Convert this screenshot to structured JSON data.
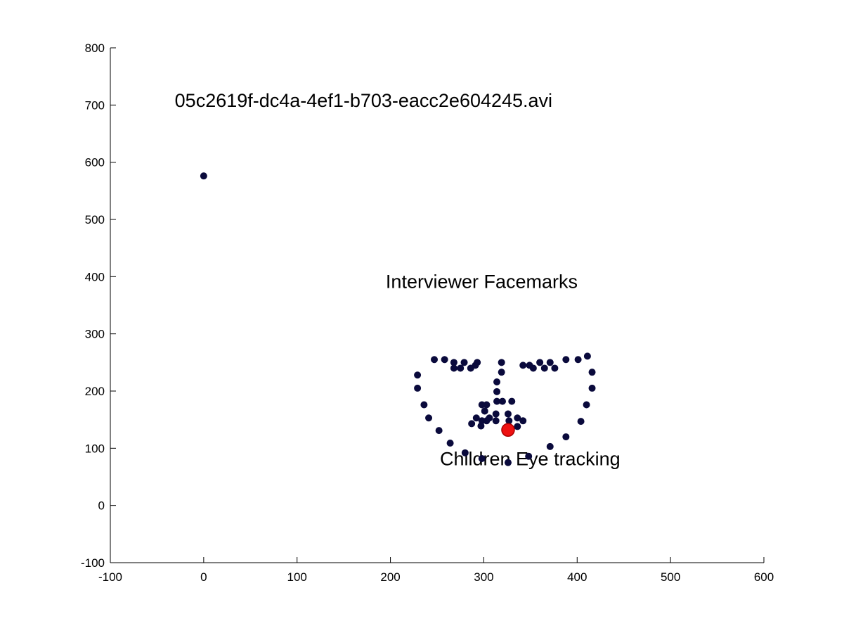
{
  "chart_data": {
    "type": "scatter",
    "title": "",
    "xlabel": "",
    "ylabel": "",
    "xlim": [
      -100,
      600
    ],
    "ylim": [
      -100,
      800
    ],
    "xticks": [
      -100,
      0,
      100,
      200,
      300,
      400,
      500,
      600
    ],
    "yticks": [
      -100,
      0,
      100,
      200,
      300,
      400,
      500,
      600,
      700,
      800
    ],
    "grid": false,
    "box": false,
    "colors": {
      "facemarks": "#0a0a3c",
      "gaze_fill": "#ee1111",
      "gaze_edge": "#aa0000",
      "axis": "#000000"
    },
    "annotations": [
      {
        "text": "05c2619f-dc4a-4ef1-b703-eacc2e604245.avi",
        "x": -31,
        "y": 697
      },
      {
        "text": "Interviewer Facemarks",
        "x": 195,
        "y": 380
      },
      {
        "text": "Children Eye tracking",
        "x": 253,
        "y": 70
      }
    ],
    "series": [
      {
        "marker": "dot",
        "points": [
          [
            0,
            576
          ],
          [
            229,
            228
          ],
          [
            229,
            205
          ],
          [
            236,
            176
          ],
          [
            241,
            153
          ],
          [
            252,
            131
          ],
          [
            264,
            109
          ],
          [
            280,
            92
          ],
          [
            298,
            82
          ],
          [
            326,
            75
          ],
          [
            348,
            86
          ],
          [
            371,
            103
          ],
          [
            388,
            120
          ],
          [
            404,
            147
          ],
          [
            410,
            176
          ],
          [
            416,
            205
          ],
          [
            416,
            233
          ],
          [
            411,
            261
          ],
          [
            247,
            255
          ],
          [
            258,
            255
          ],
          [
            268,
            250
          ],
          [
            279,
            250
          ],
          [
            293,
            250
          ],
          [
            401,
            255
          ],
          [
            388,
            255
          ],
          [
            371,
            250
          ],
          [
            360,
            250
          ],
          [
            349,
            245
          ],
          [
            268,
            240
          ],
          [
            275,
            240
          ],
          [
            286,
            240
          ],
          [
            291,
            245
          ],
          [
            342,
            245
          ],
          [
            353,
            240
          ],
          [
            365,
            240
          ],
          [
            376,
            240
          ],
          [
            319,
            250
          ],
          [
            319,
            233
          ],
          [
            314,
            216
          ],
          [
            314,
            199
          ],
          [
            314,
            182
          ],
          [
            320,
            182
          ],
          [
            330,
            182
          ],
          [
            298,
            176
          ],
          [
            303,
            176
          ],
          [
            301,
            165
          ],
          [
            292,
            153
          ],
          [
            306,
            153
          ],
          [
            313,
            160
          ],
          [
            287,
            143
          ],
          [
            297,
            139
          ],
          [
            298,
            148
          ],
          [
            303,
            148
          ],
          [
            313,
            148
          ],
          [
            326,
            160
          ],
          [
            327,
            148
          ],
          [
            336,
            153
          ],
          [
            336,
            138
          ],
          [
            342,
            148
          ]
        ]
      },
      {
        "name": "Children Eye tracking",
        "marker": "large-dot",
        "points": [
          [
            326,
            132
          ]
        ]
      }
    ]
  }
}
